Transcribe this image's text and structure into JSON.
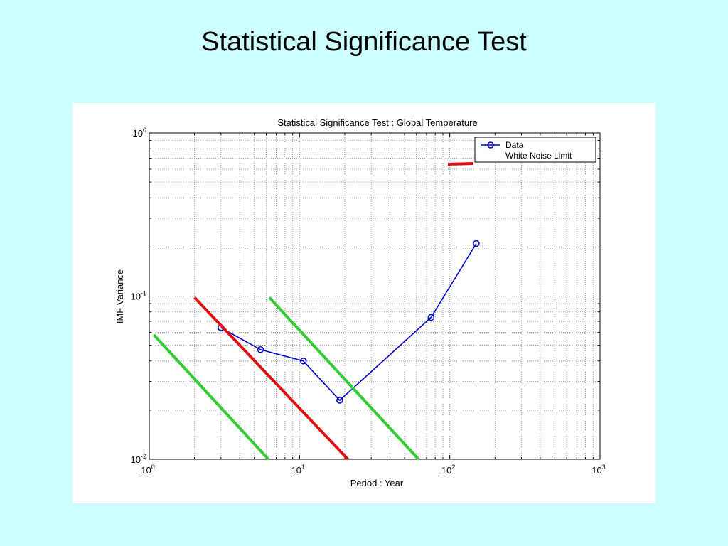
{
  "slide": {
    "title": "Statistical Significance Test"
  },
  "chart_data": {
    "type": "line",
    "title": "Statistical Significance Test : Global Temperature",
    "xlabel": "Period : Year",
    "ylabel": "IMF Variance",
    "x_scale": "log",
    "y_scale": "log",
    "xlim": [
      1,
      1000
    ],
    "ylim": [
      0.01,
      1
    ],
    "grid": true,
    "legend_placement": "top-right",
    "x_ticks": [
      {
        "value": 1,
        "base": "10",
        "exp": "0"
      },
      {
        "value": 10,
        "base": "10",
        "exp": "1"
      },
      {
        "value": 100,
        "base": "10",
        "exp": "2"
      },
      {
        "value": 1000,
        "base": "10",
        "exp": "3"
      }
    ],
    "y_ticks": [
      {
        "value": 0.01,
        "base": "10",
        "exp": "-2"
      },
      {
        "value": 0.1,
        "base": "10",
        "exp": "-1"
      },
      {
        "value": 1,
        "base": "10",
        "exp": "0"
      }
    ],
    "series": [
      {
        "name": "Data",
        "style": "line-marker",
        "color": "#0000cc",
        "x": [
          3,
          5.5,
          10.6,
          18.5,
          75,
          150
        ],
        "y": [
          0.064,
          0.047,
          0.04,
          0.023,
          0.074,
          0.21
        ]
      },
      {
        "name": "White Noise Limit",
        "style": "line",
        "color": "#dd1111",
        "x": [
          2,
          21
        ],
        "y": [
          0.098,
          0.01
        ]
      },
      {
        "style": "line",
        "color": "#33cc33",
        "x": [
          1.07,
          6.2
        ],
        "y": [
          0.058,
          0.01
        ]
      },
      {
        "style": "line",
        "color": "#33cc33",
        "x": [
          6.3,
          62
        ],
        "y": [
          0.098,
          0.01
        ]
      }
    ]
  }
}
